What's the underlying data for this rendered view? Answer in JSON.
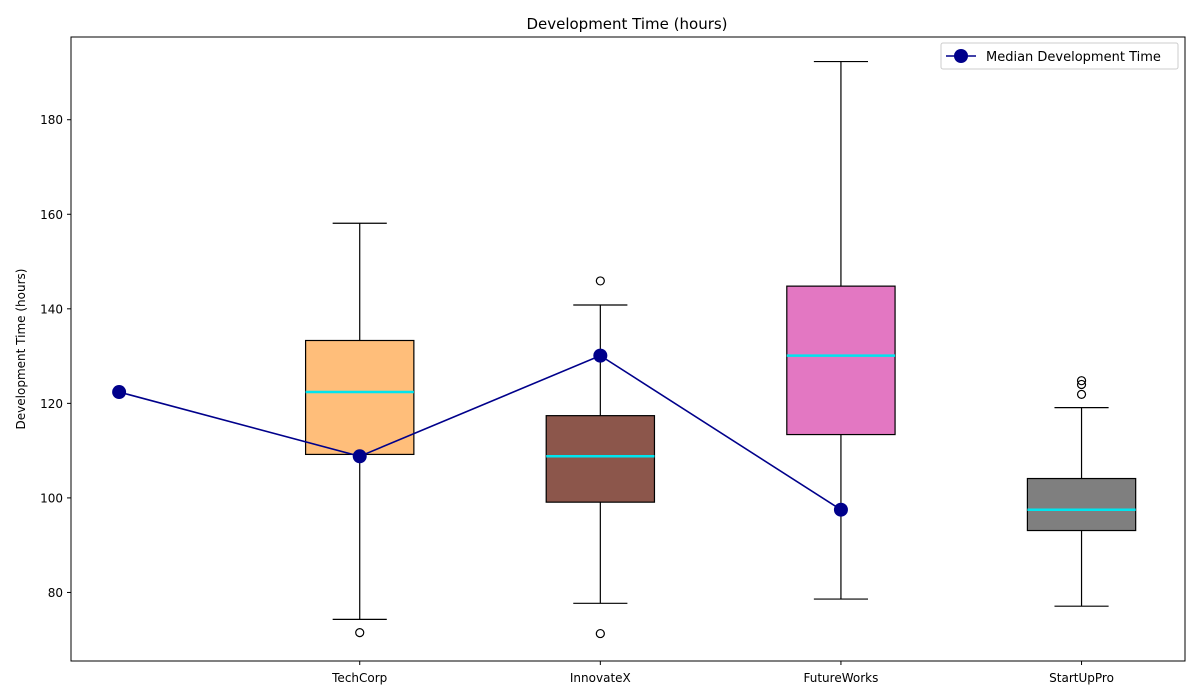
{
  "chart_data": {
    "type": "box",
    "title": "Development Time (hours)",
    "xlabel": "",
    "ylabel": "Development Time (hours)",
    "ylim": [
      65.5,
      197.5
    ],
    "yticks": [
      80,
      100,
      120,
      140,
      160,
      180
    ],
    "categories": [
      "TechCorp",
      "InnovateX",
      "FutureWorks",
      "StartUpPro"
    ],
    "boxes": [
      {
        "category": "TechCorp",
        "whisker_low": 74.3,
        "q1": 109.2,
        "median": 122.4,
        "q3": 133.3,
        "whisker_high": 158.1,
        "outliers": [
          71.5
        ],
        "color": "#ffbe7a"
      },
      {
        "category": "InnovateX",
        "whisker_low": 77.7,
        "q1": 99.1,
        "median": 108.8,
        "q3": 117.4,
        "whisker_high": 140.8,
        "outliers": [
          71.3,
          145.9
        ],
        "color": "#8c564b"
      },
      {
        "category": "FutureWorks",
        "whisker_low": 78.6,
        "q1": 113.4,
        "median": 130.1,
        "q3": 144.8,
        "whisker_high": 192.3,
        "outliers": [],
        "color": "#e377c2"
      },
      {
        "category": "StartUpPro",
        "whisker_low": 77.1,
        "q1": 93.1,
        "median": 97.5,
        "q3": 104.1,
        "whisker_high": 119.1,
        "outliers": [
          121.9,
          124.0,
          124.8
        ],
        "color": "#7f7f7f"
      }
    ],
    "median_line": {
      "name": "Median Development Time",
      "x_positions": [
        0,
        1,
        2,
        3,
        4
      ],
      "values": [
        122.4,
        108.8,
        130.1,
        97.5,
        null
      ],
      "color": "#00008b"
    },
    "x_positions_categories": [
      1,
      2,
      3,
      4
    ],
    "xlim": [
      -0.2,
      4.43
    ],
    "median_color": "#00e5ee",
    "legend_position": "top-right",
    "grid": false
  }
}
